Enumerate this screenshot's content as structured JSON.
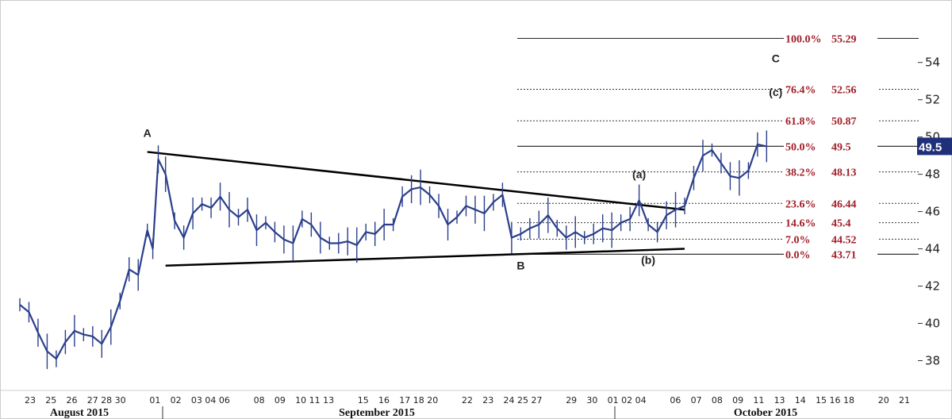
{
  "chart_data": {
    "type": "line",
    "title": "",
    "xlabel": "",
    "ylabel": "",
    "ylim": [
      36.7,
      56.5
    ],
    "yticks": [
      38,
      40,
      42,
      44,
      46,
      48,
      50,
      52,
      54
    ],
    "current_price_label": "49.5",
    "months": [
      {
        "label": "August 2015",
        "key": "aug"
      },
      {
        "label": "September 2015",
        "key": "sep"
      },
      {
        "label": "October 2015",
        "key": "oct"
      }
    ],
    "x_tick_labels": [
      "23",
      "25",
      "26",
      "27",
      "28",
      "30",
      "01",
      "02",
      "03",
      "04",
      "06",
      "07",
      "08",
      "09",
      "10",
      "11",
      "13",
      "14",
      "15",
      "16",
      "17",
      "18",
      "20",
      "21",
      "22",
      "23",
      "24",
      "25",
      "27",
      "28",
      "29",
      "30",
      "01",
      "02",
      "04",
      "05",
      "06",
      "07",
      "08",
      "09",
      "11",
      "12",
      "13",
      "14",
      "15",
      "16",
      "18",
      "19",
      "20",
      "21"
    ],
    "x_tick_display": [
      "23",
      "25",
      "26",
      "27",
      "28 30",
      "",
      "01",
      "02",
      "03",
      "04 06",
      "",
      "08",
      "09",
      "10",
      "11 13",
      "",
      "15",
      "16",
      "17",
      "18 20",
      "",
      "22",
      "23",
      "24",
      "25 27",
      "",
      "29",
      "30",
      "01",
      "02 04",
      "",
      "06",
      "07",
      "08",
      "09",
      "11",
      "13",
      "14",
      "15",
      "16 18",
      "",
      "20",
      "21"
    ],
    "fib_levels": [
      {
        "label": "100.0%",
        "value": 55.29,
        "value_text": "55.29",
        "style": "solid"
      },
      {
        "label": "76.4%",
        "value": 52.56,
        "value_text": "52.56",
        "style": "dotted"
      },
      {
        "label": "61.8%",
        "value": 50.87,
        "value_text": "50.87",
        "style": "dotted"
      },
      {
        "label": "50.0%",
        "value": 49.5,
        "value_text": "49.5",
        "style": "solid"
      },
      {
        "label": "38.2%",
        "value": 48.13,
        "value_text": "48.13",
        "style": "dotted"
      },
      {
        "label": "23.6%",
        "value": 46.44,
        "value_text": "46.44",
        "style": "dotted"
      },
      {
        "label": "14.6%",
        "value": 45.4,
        "value_text": "45.4",
        "style": "dotted"
      },
      {
        "label": "7.0%",
        "value": 44.52,
        "value_text": "44.52",
        "style": "dotted"
      },
      {
        "label": "0.0%",
        "value": 43.71,
        "value_text": "43.71",
        "style": "solid"
      }
    ],
    "wave_labels": [
      {
        "text": "A",
        "x": 7,
        "y": 50.0
      },
      {
        "text": "B",
        "x": 27.5,
        "y": 42.9
      },
      {
        "text": "(a)",
        "x": 34,
        "y": 47.8
      },
      {
        "text": "(b)",
        "x": 34.5,
        "y": 43.2
      },
      {
        "text": "C",
        "x": 41.5,
        "y": 54.0
      },
      {
        "text": "(c)",
        "x": 41.5,
        "y": 52.2
      }
    ],
    "trendlines": [
      {
        "name": "upper",
        "from": [
          7,
          49.2
        ],
        "to": [
          36.5,
          46.1
        ]
      },
      {
        "name": "lower",
        "from": [
          8,
          43.1
        ],
        "to": [
          36.5,
          44.0
        ]
      }
    ],
    "series": [
      {
        "values": [
          [
            0,
            41.0
          ],
          [
            0.5,
            40.6
          ],
          [
            1,
            39.5
          ],
          [
            1.5,
            38.5
          ],
          [
            2,
            38.1
          ],
          [
            2.5,
            39.0
          ],
          [
            3,
            39.6
          ],
          [
            3.5,
            39.4
          ],
          [
            4,
            39.3
          ],
          [
            4.5,
            38.9
          ],
          [
            5,
            39.8
          ],
          [
            5.5,
            41.2
          ],
          [
            6,
            42.9
          ],
          [
            6.5,
            42.6
          ],
          [
            7,
            45.0
          ],
          [
            7.3,
            44.0
          ],
          [
            7.6,
            48.8
          ],
          [
            8,
            48.0
          ],
          [
            8.5,
            45.5
          ],
          [
            9,
            44.6
          ],
          [
            9.5,
            45.9
          ],
          [
            10,
            46.4
          ],
          [
            10.5,
            46.2
          ],
          [
            11,
            46.8
          ],
          [
            11.5,
            46.1
          ],
          [
            12,
            45.7
          ],
          [
            12.5,
            46.1
          ],
          [
            13,
            45.0
          ],
          [
            13.5,
            45.4
          ],
          [
            14,
            44.9
          ],
          [
            14.5,
            44.5
          ],
          [
            15,
            44.3
          ],
          [
            15.5,
            45.6
          ],
          [
            16,
            45.3
          ],
          [
            16.5,
            44.6
          ],
          [
            17,
            44.3
          ],
          [
            17.5,
            44.3
          ],
          [
            18,
            44.4
          ],
          [
            18.5,
            44.2
          ],
          [
            19,
            44.9
          ],
          [
            19.5,
            44.8
          ],
          [
            20,
            45.3
          ],
          [
            20.5,
            45.3
          ],
          [
            21,
            46.8
          ],
          [
            21.5,
            47.2
          ],
          [
            22,
            47.3
          ],
          [
            22.5,
            46.9
          ],
          [
            23,
            46.3
          ],
          [
            23.5,
            45.3
          ],
          [
            24,
            45.7
          ],
          [
            24.5,
            46.3
          ],
          [
            25,
            46.1
          ],
          [
            25.5,
            45.9
          ],
          [
            26,
            46.5
          ],
          [
            26.5,
            46.9
          ],
          [
            27,
            44.6
          ],
          [
            27.5,
            44.8
          ],
          [
            28,
            45.1
          ],
          [
            28.5,
            45.3
          ],
          [
            29,
            45.8
          ],
          [
            29.5,
            45.1
          ],
          [
            30,
            44.6
          ],
          [
            30.5,
            44.9
          ],
          [
            31,
            44.6
          ],
          [
            31.5,
            44.8
          ],
          [
            32,
            45.1
          ],
          [
            32.5,
            45.0
          ],
          [
            33,
            45.4
          ],
          [
            33.5,
            45.6
          ],
          [
            34,
            46.6
          ],
          [
            34.5,
            45.3
          ],
          [
            35,
            44.9
          ],
          [
            35.5,
            45.8
          ],
          [
            36,
            46.1
          ],
          [
            36.5,
            46.3
          ],
          [
            37,
            47.8
          ],
          [
            37.5,
            49.0
          ],
          [
            38,
            49.3
          ],
          [
            38.5,
            48.6
          ],
          [
            39,
            47.9
          ],
          [
            39.5,
            47.8
          ],
          [
            40,
            48.2
          ],
          [
            40.5,
            49.6
          ],
          [
            41,
            49.5
          ]
        ]
      }
    ],
    "colors": {
      "series": "#2b3f8c",
      "trendline": "#000000",
      "fib_text": "#a0202a",
      "price_tag_bg": "#1f2f7a",
      "border": "#999999"
    },
    "grid": false,
    "legend": "none"
  }
}
